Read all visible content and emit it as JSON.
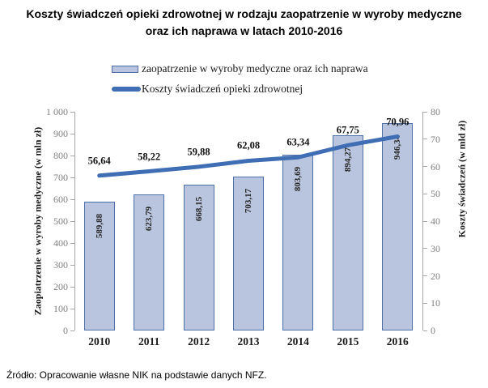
{
  "title": {
    "line1": "Koszty świadczeń opieki zdrowotnej w rodzaju zaopatrzenie w wyroby medyczne",
    "line2": "oraz ich naprawa w latach 2010-2016"
  },
  "legend": [
    {
      "type": "bar",
      "label": "zaopatrzenie w wyroby medyczne oraz ich naprawa"
    },
    {
      "type": "line",
      "label": "Koszty świadczeń opieki zdrowotnej"
    }
  ],
  "chart_data": {
    "type": "bar+line",
    "categories": [
      "2010",
      "2011",
      "2012",
      "2013",
      "2014",
      "2015",
      "2016"
    ],
    "series": [
      {
        "name": "zaopatrzenie w wyroby medyczne oraz ich naprawa",
        "type": "bar",
        "axis": "left",
        "values": [
          589.88,
          623.79,
          668.15,
          703.17,
          803.69,
          894.27,
          946.34
        ],
        "labels": [
          "589,88",
          "623,79",
          "668,15",
          "703,17",
          "803,69",
          "894,27",
          "946,34"
        ]
      },
      {
        "name": "Koszty świadczeń opieki zdrowotnej",
        "type": "line",
        "axis": "right",
        "values": [
          56.64,
          58.22,
          59.88,
          62.08,
          63.34,
          67.75,
          70.96
        ],
        "labels": [
          "56,64",
          "58,22",
          "59,88",
          "62,08",
          "63,34",
          "67,75",
          "70,96"
        ]
      }
    ],
    "left_axis": {
      "title": "Zaopiatrzenie w wyroby medyczne (w mln zł)",
      "min": 0,
      "max": 1000,
      "step": 100,
      "tick_labels": [
        "0",
        "100",
        "200",
        "300",
        "400",
        "500",
        "600",
        "700",
        "800",
        "900",
        "1 000"
      ]
    },
    "right_axis": {
      "title": "Koszty świadczeń (w mld zł)",
      "min": 0,
      "max": 80,
      "step": 10,
      "tick_labels": [
        "0",
        "10",
        "20",
        "30",
        "40",
        "50",
        "60",
        "70",
        "80"
      ]
    },
    "grid": false,
    "legend_position": "top",
    "colors": {
      "bar_fill": "#b9c5de",
      "bar_border": "#4f6fa8",
      "line": "#3f6eb5",
      "axis": "#a6a6a6",
      "tick_text": "#7f7f7f"
    }
  },
  "source": "Źródło: Opracowanie własne NIK na podstawie danych NFZ."
}
